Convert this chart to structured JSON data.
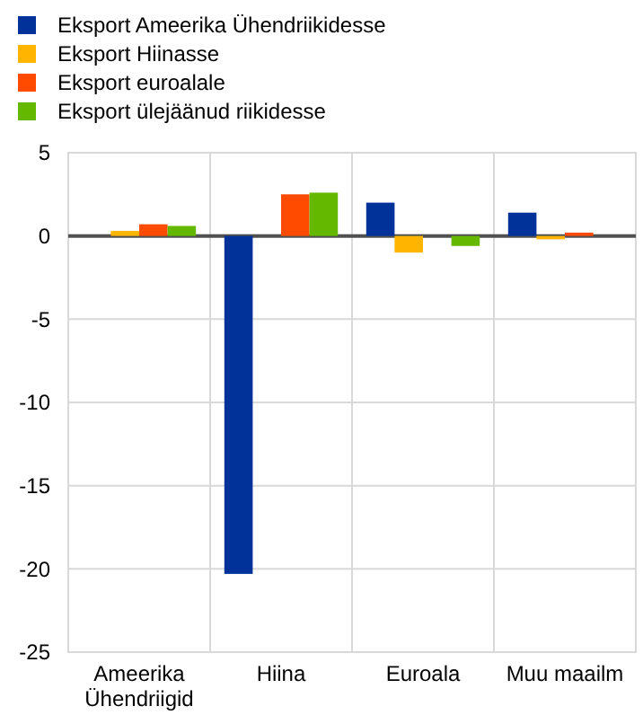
{
  "chart_data": {
    "type": "bar",
    "categories": [
      "Ameerika Ühendriigid",
      "Hiina",
      "Euroala",
      "Muu maailm"
    ],
    "series": [
      {
        "name": "Eksport Ameerika Ühendriikidesse",
        "color": "#003299",
        "values": [
          0,
          -20.3,
          2.0,
          1.4
        ]
      },
      {
        "name": "Eksport Hiinasse",
        "color": "#ffb400",
        "values": [
          0.3,
          0,
          -1.0,
          -0.2
        ]
      },
      {
        "name": "Eksport euroalale",
        "color": "#ff4b00",
        "values": [
          0.7,
          2.5,
          0,
          0.2
        ]
      },
      {
        "name": "Eksport ülejäänud riikidesse",
        "color": "#65b800",
        "values": [
          0.6,
          2.6,
          -0.6,
          0
        ]
      }
    ],
    "ylim": [
      -25,
      5
    ],
    "yticks": [
      -25,
      -20,
      -15,
      -10,
      -5,
      0,
      5
    ],
    "grid": true,
    "legend": "top left"
  }
}
